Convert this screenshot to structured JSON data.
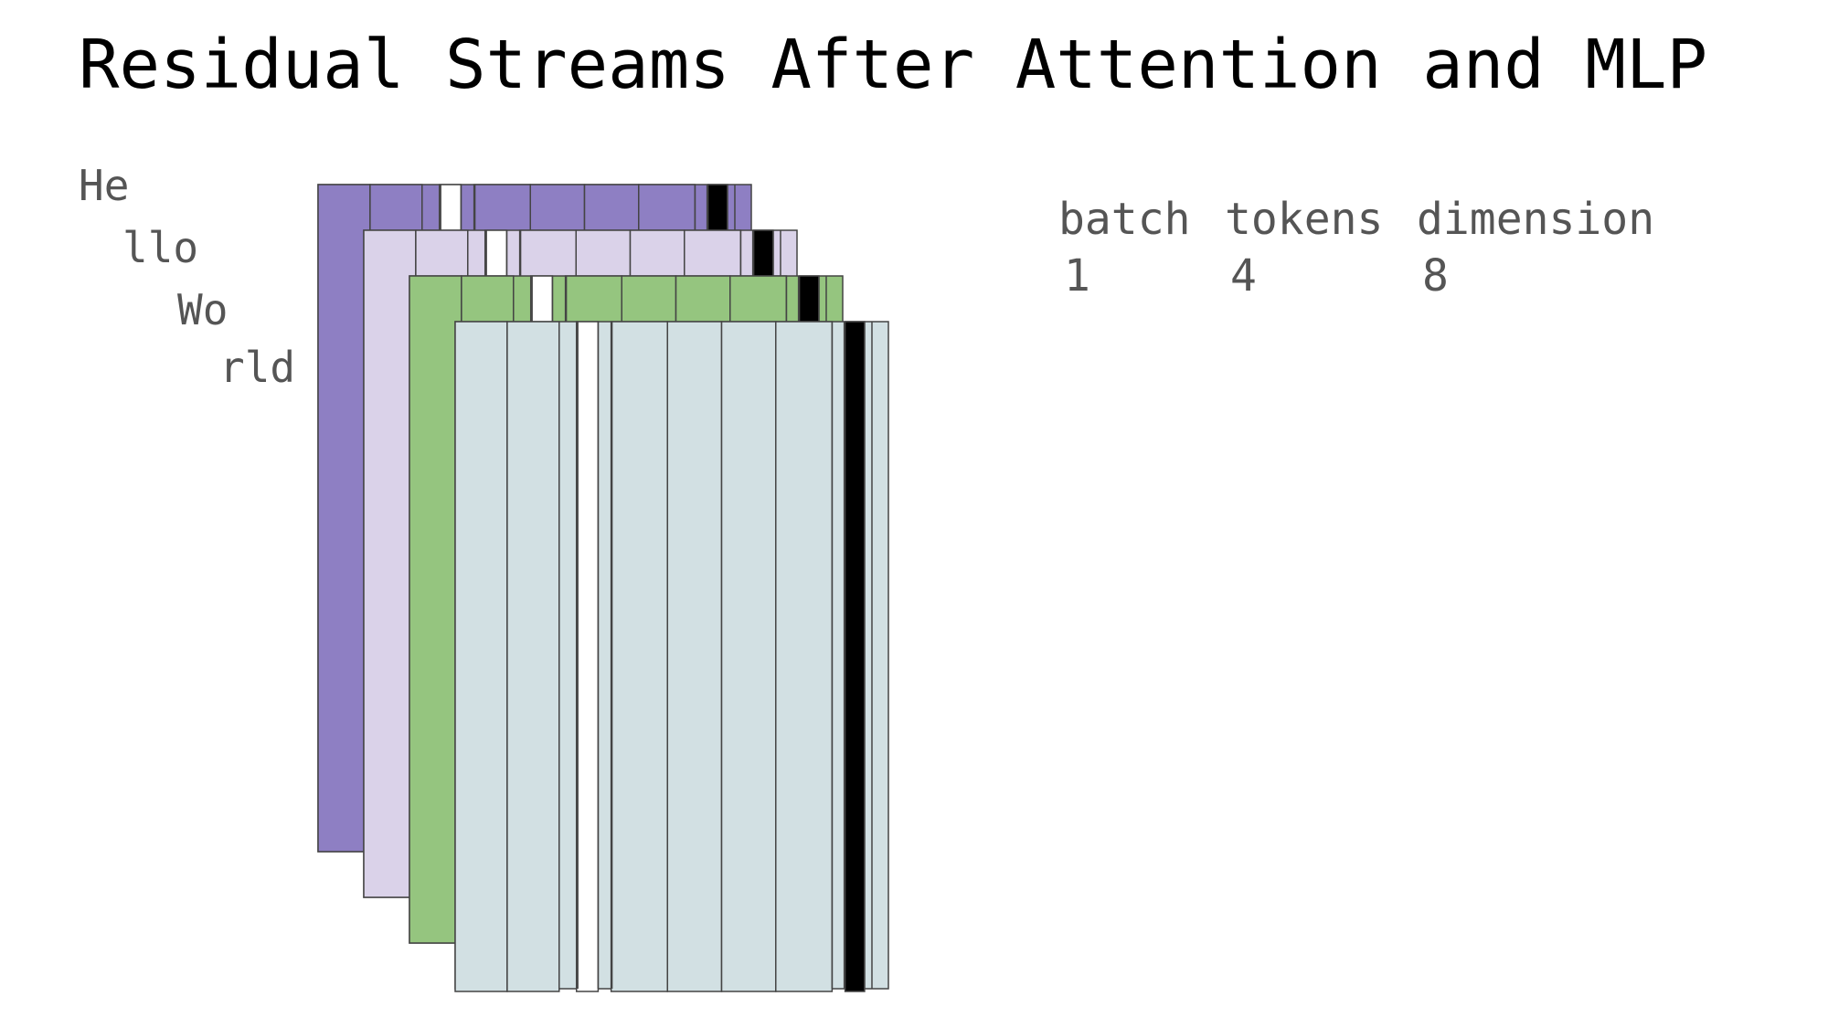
{
  "title": "Residual Streams After Attention and MLP",
  "tokens": [
    {
      "label": "He",
      "color": "#8e7fc3"
    },
    {
      "label": "llo",
      "color": "#dad2e9"
    },
    {
      "label": "Wo",
      "color": "#95c57f"
    },
    {
      "label": "rld",
      "color": "#d2e0e3"
    }
  ],
  "dimension_count": 8,
  "highlight_columns": {
    "white": 2,
    "black": 7
  },
  "colors": {
    "border": "#444444",
    "white_column": "#ffffff",
    "black_column": "#000000",
    "text": "#555555"
  },
  "shape": {
    "headers": [
      "batch",
      "tokens",
      "dimension"
    ],
    "values": [
      "1",
      "4",
      "8"
    ]
  }
}
